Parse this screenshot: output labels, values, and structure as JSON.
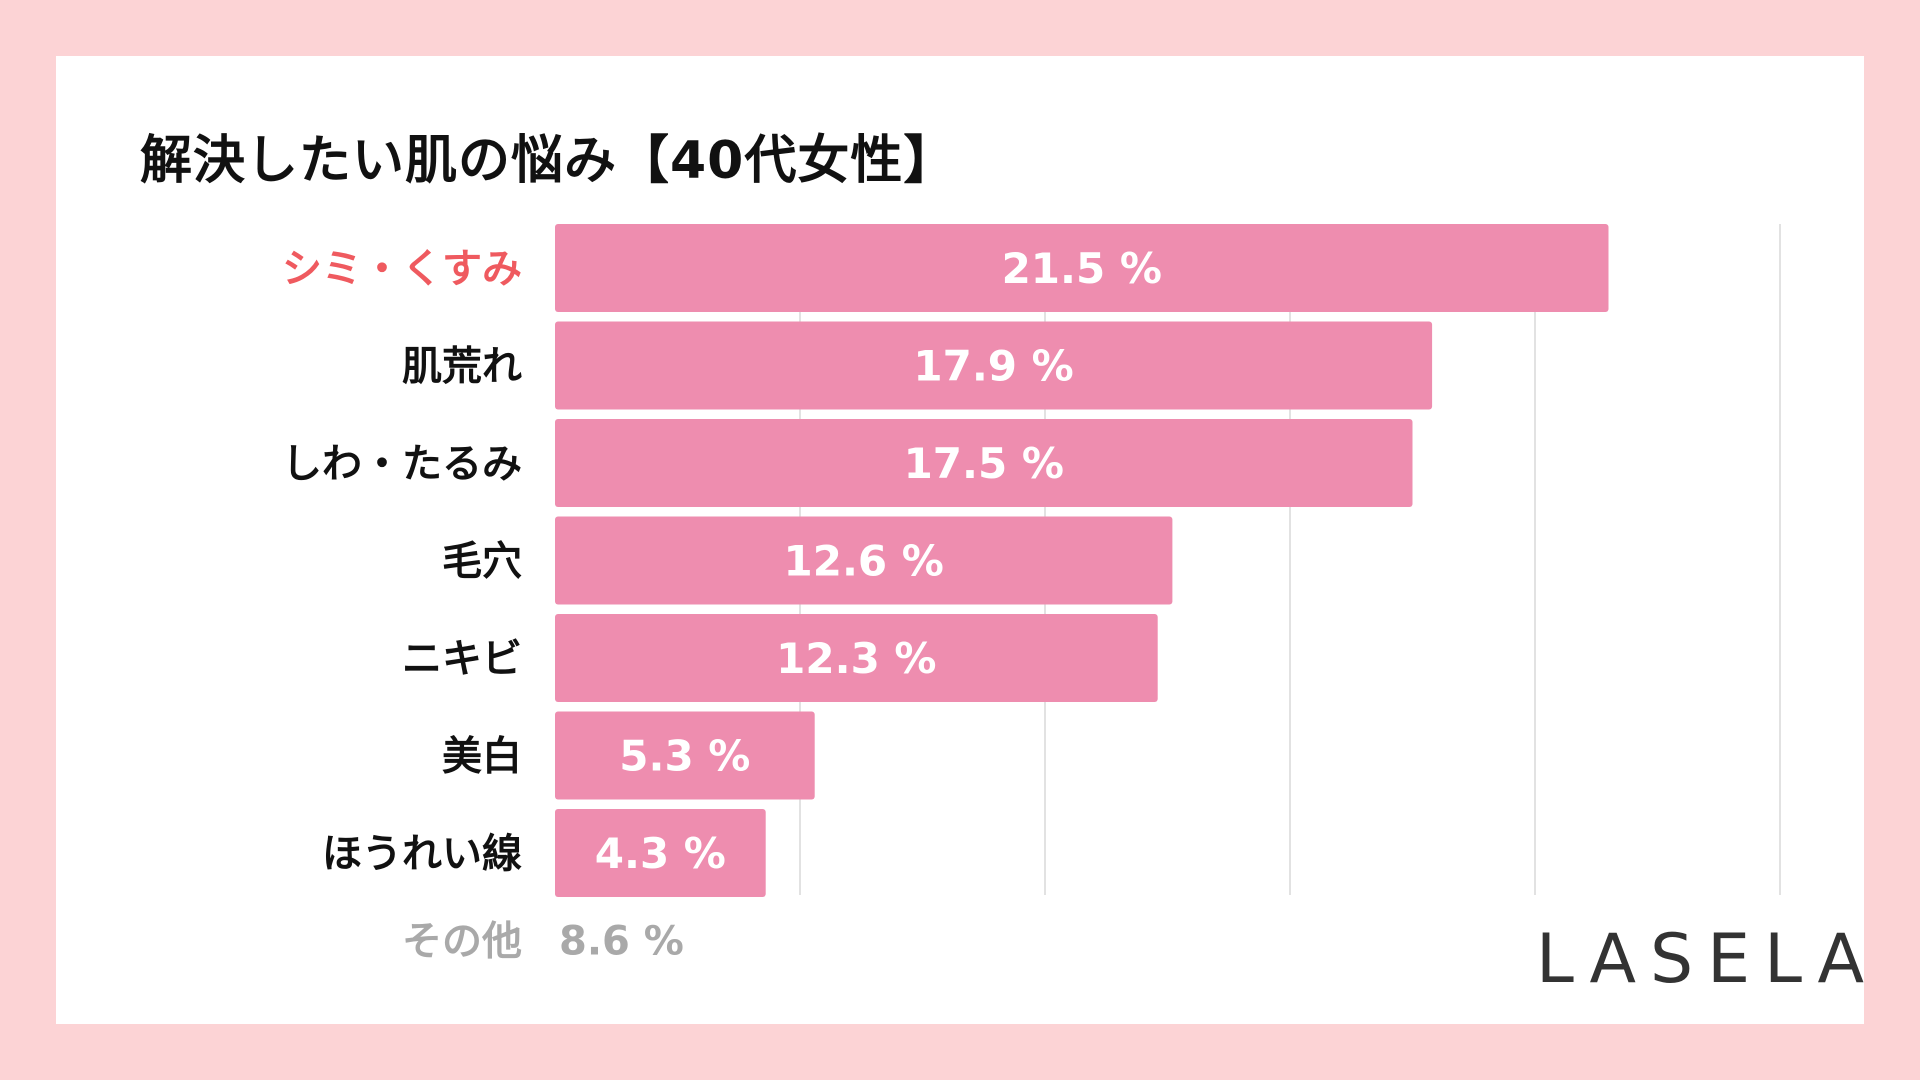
{
  "title": "解決したい肌の悩み【40代女性】",
  "brand": "LASELA",
  "colors": {
    "background": "#fcd3d5",
    "bar": "#ee8daf",
    "highlight_label": "#ef5a5f",
    "label": "#111111",
    "muted": "#a9a9a9",
    "grid": "#d9d9d9"
  },
  "chart_data": {
    "type": "bar",
    "orientation": "horizontal",
    "title": "解決したい肌の悩み【40代女性】",
    "categories": [
      "シミ・くすみ",
      "肌荒れ",
      "しわ・たるみ",
      "毛穴",
      "ニキビ",
      "美白",
      "ほうれい線"
    ],
    "values": [
      21.5,
      17.9,
      17.5,
      12.6,
      12.3,
      5.3,
      4.3
    ],
    "value_labels": [
      "21.5 %",
      "17.9 %",
      "17.5 %",
      "12.6 %",
      "12.3 %",
      "5.3 %",
      "4.3 %"
    ],
    "highlight_index": 0,
    "xlim": [
      0,
      25
    ],
    "grid": true,
    "xlabel": "",
    "ylabel": "",
    "other": {
      "label": "その他",
      "value": 8.6,
      "value_label": "8.6 %"
    }
  }
}
